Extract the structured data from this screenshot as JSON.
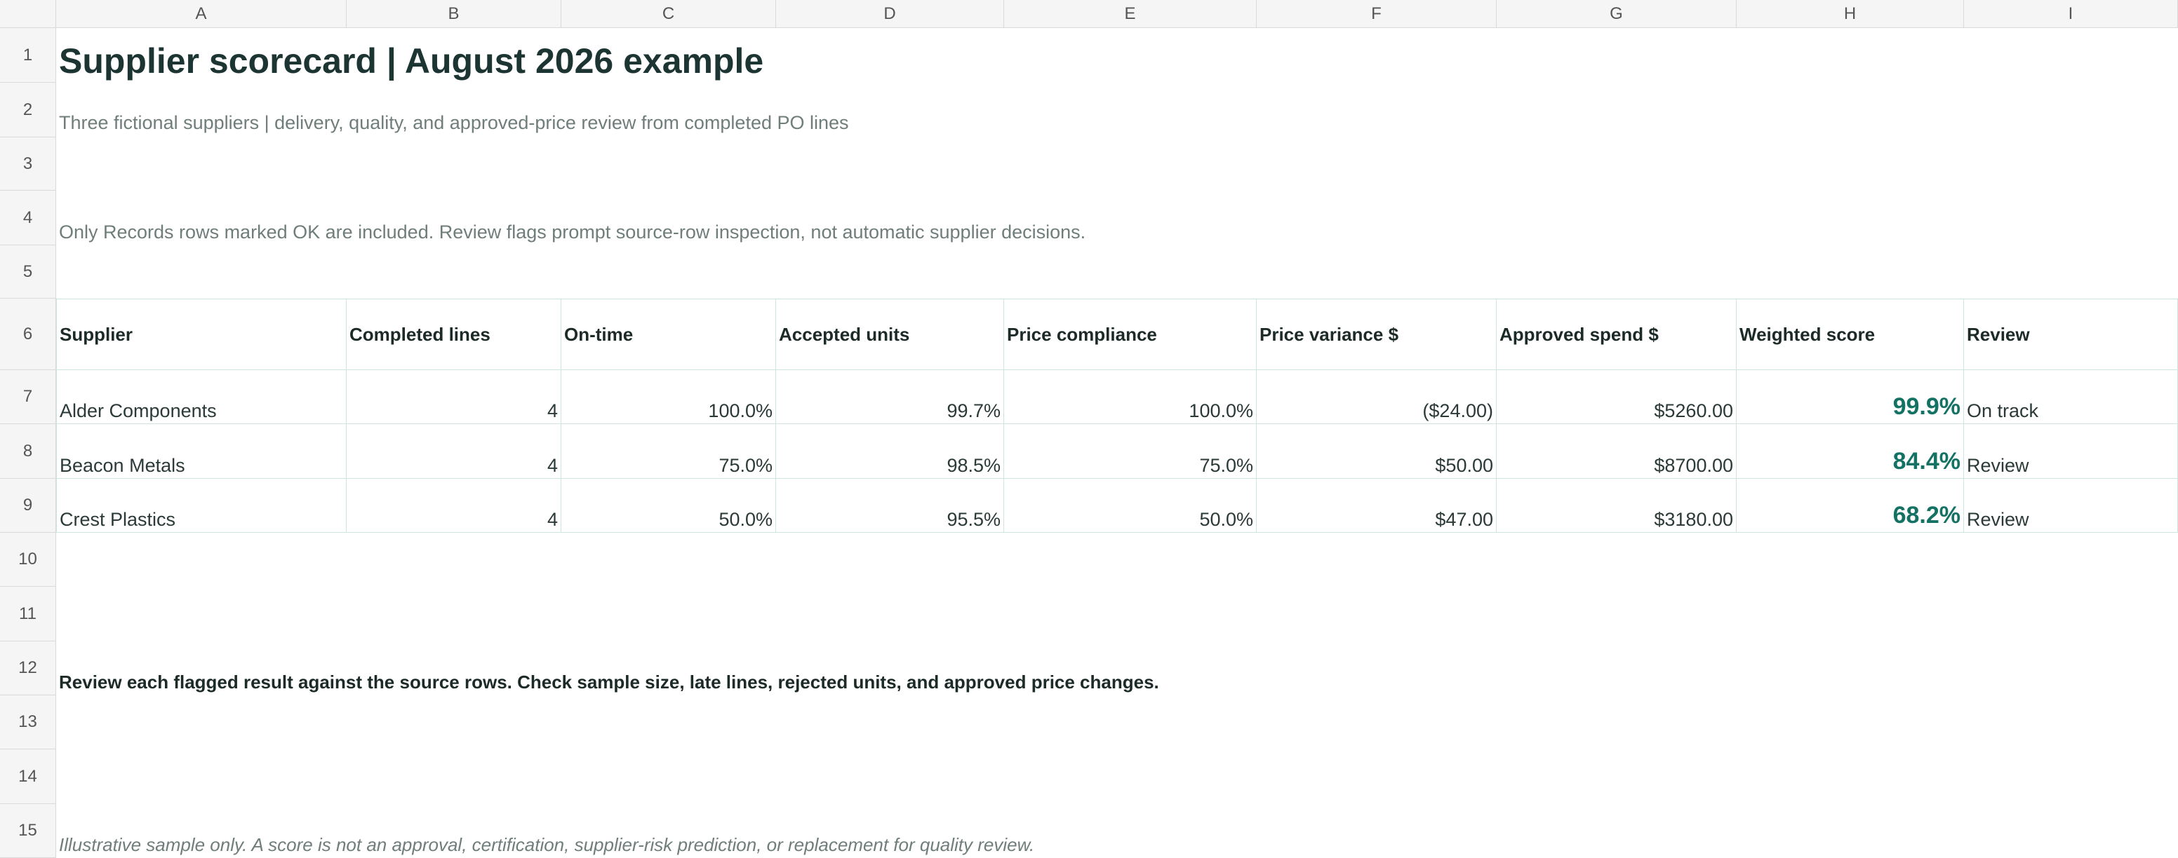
{
  "columns": [
    "A",
    "B",
    "C",
    "D",
    "E",
    "F",
    "G",
    "H",
    "I"
  ],
  "rows": [
    "1",
    "2",
    "3",
    "4",
    "5",
    "6",
    "7",
    "8",
    "9",
    "10",
    "11",
    "12",
    "13",
    "14",
    "15"
  ],
  "title": "Supplier scorecard | August 2026 example",
  "subtitle": "Three fictional suppliers | delivery, quality, and approved-price review from completed PO lines",
  "note": "Only Records rows marked OK are included. Review flags prompt source-row inspection, not automatic supplier decisions.",
  "table": {
    "headers": [
      "Supplier",
      "Completed lines",
      "On-time",
      "Accepted units",
      "Price compliance",
      "Price variance $",
      "Approved spend $",
      "Weighted score",
      "Review"
    ],
    "rows": [
      [
        "Alder Components",
        "4",
        "100.0%",
        "99.7%",
        "100.0%",
        "($24.00)",
        "$5260.00",
        "99.9%",
        "On track"
      ],
      [
        "Beacon Metals",
        "4",
        "75.0%",
        "98.5%",
        "75.0%",
        "$50.00",
        "$8700.00",
        "84.4%",
        "Review"
      ],
      [
        "Crest Plastics",
        "4",
        "50.0%",
        "95.5%",
        "50.0%",
        "$47.00",
        "$3180.00",
        "68.2%",
        "Review"
      ]
    ]
  },
  "review_text": "Review each flagged result against the source rows. Check sample size, late lines, rejected units, and approved price changes.",
  "disclaimer": "Illustrative sample only. A score is not an approval, certification, supplier-risk prediction, or replacement for quality review.",
  "colors": {
    "accent": "#137263",
    "title": "#1c3533",
    "muted": "#6f7d7b",
    "grid": "#cfe3e0"
  }
}
